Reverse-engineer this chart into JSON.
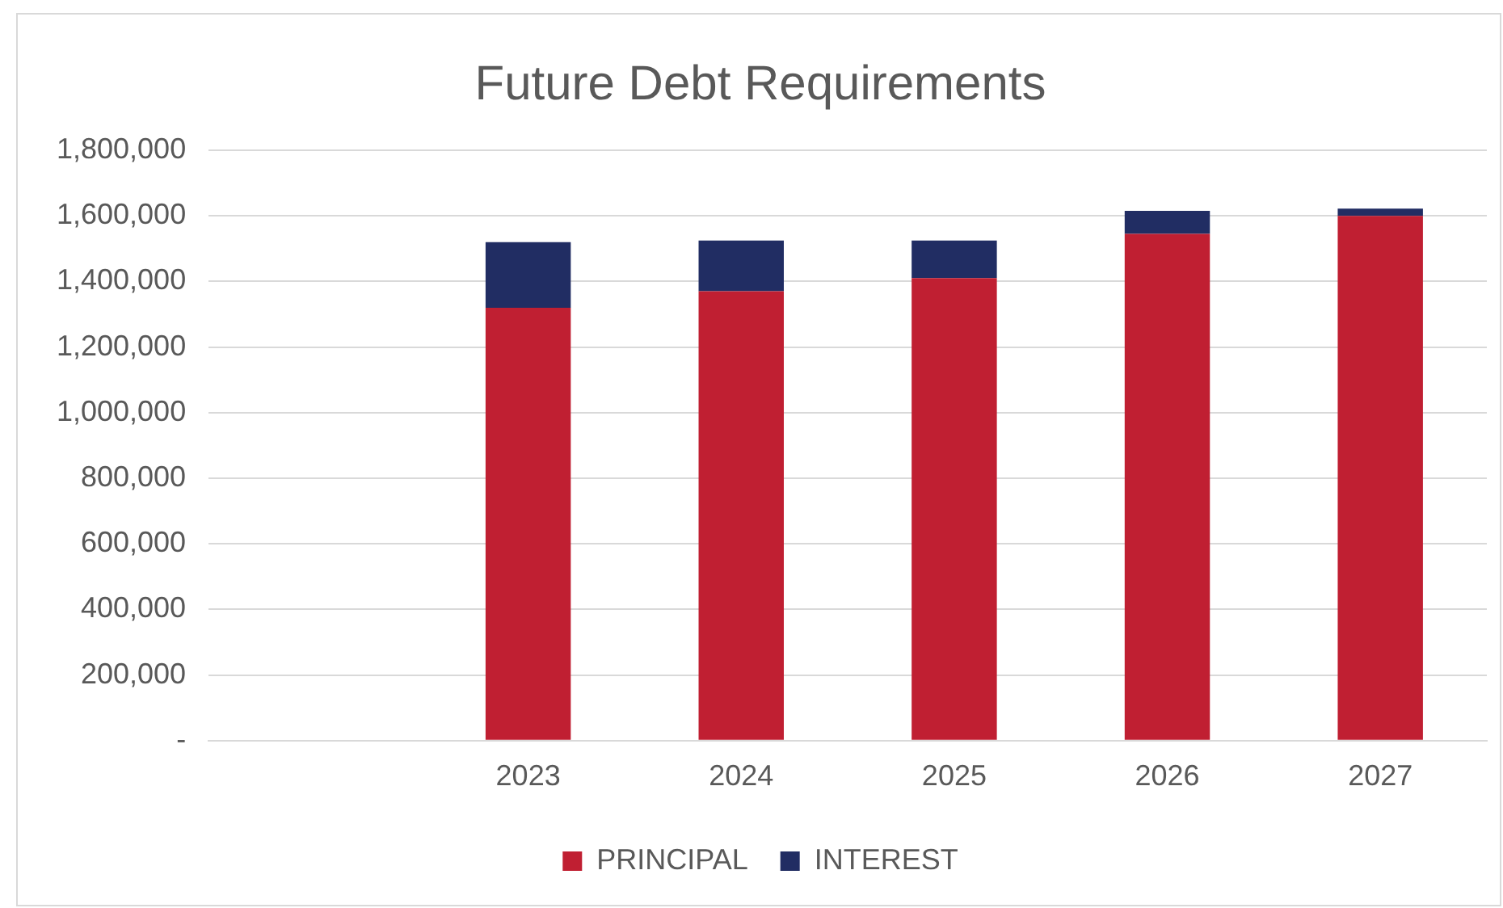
{
  "chart_data": {
    "type": "bar",
    "title": "Future Debt Requirements",
    "stacked": true,
    "categories": [
      null,
      "2023",
      "2024",
      "2025",
      "2026",
      "2027"
    ],
    "series": [
      {
        "name": "PRINCIPAL",
        "color": "#c01f32",
        "values": [
          null,
          1320000,
          1370000,
          1410000,
          1545000,
          1600000
        ]
      },
      {
        "name": "INTEREST",
        "color": "#212d63",
        "values": [
          null,
          200000,
          155000,
          115000,
          70000,
          22000
        ]
      }
    ],
    "ylim": [
      0,
      1800000
    ],
    "yticks": [
      {
        "value": 0,
        "label": "-"
      },
      {
        "value": 200000,
        "label": "200,000"
      },
      {
        "value": 400000,
        "label": "400,000"
      },
      {
        "value": 600000,
        "label": "600,000"
      },
      {
        "value": 800000,
        "label": "800,000"
      },
      {
        "value": 1000000,
        "label": "1,000,000"
      },
      {
        "value": 1200000,
        "label": "1,200,000"
      },
      {
        "value": 1400000,
        "label": "1,400,000"
      },
      {
        "value": 1600000,
        "label": "1,600,000"
      },
      {
        "value": 1800000,
        "label": "1,800,000"
      }
    ],
    "grid": "y",
    "legend": "bottom"
  }
}
